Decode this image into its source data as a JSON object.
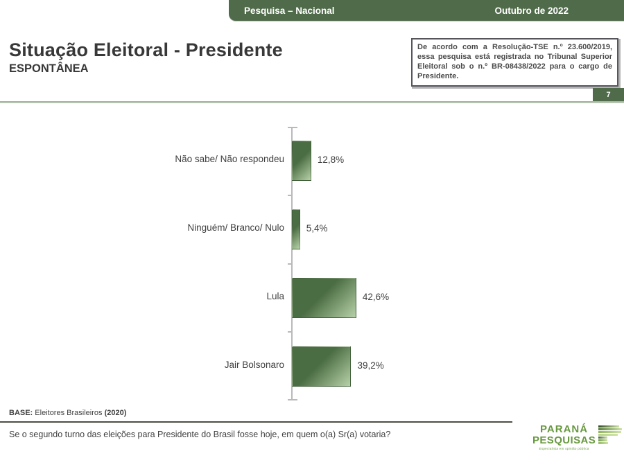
{
  "header": {
    "left": "Pesquisa – Nacional",
    "right": "Outubro de 2022"
  },
  "title": "Situação Eleitoral - Presidente",
  "subtitle": "ESPONTÂNEA",
  "disclaimer": "De acordo com a Resolução-TSE n.º 23.600/2019, essa pesquisa está registrada no Tribunal Superior Eleitoral sob o n.º BR-08438/2022 para o cargo de Presidente.",
  "page_number": "7",
  "chart_data": {
    "type": "bar",
    "orientation": "horizontal",
    "title": "Situação Eleitoral - Presidente (ESPONTÂNEA)",
    "categories": [
      "Não sabe/ Não respondeu",
      "Ninguém/ Branco/ Nulo",
      "Lula",
      "Jair Bolsonaro"
    ],
    "values": [
      12.8,
      5.4,
      42.6,
      39.2
    ],
    "value_labels": [
      "12,8%",
      "5,4%",
      "42,6%",
      "39,2%"
    ],
    "xlabel": "",
    "ylabel": "",
    "xlim": [
      0,
      45
    ],
    "grid": false,
    "legend": false
  },
  "footer": {
    "base_prefix": "BASE:",
    "base_text": " Eleitores Brasileiros ",
    "base_suffix": "(2020)",
    "question": "Se o segundo turno das eleições para Presidente do Brasil fosse hoje, em quem o(a) Sr(a) votaria?"
  },
  "logo": {
    "line1": "PARANÁ",
    "line2": "PESQUISAS",
    "tagline": "Especialista em opinião pública"
  },
  "colors": {
    "accent_green": "#506b4a",
    "bar_dark": "#4b6d43",
    "bar_light": "#b7d1a8",
    "logo_green": "#67993e",
    "divider_light": "#a4b99a",
    "divider_dark": "#4c4f44",
    "axis_gray": "#b9b9b9"
  }
}
